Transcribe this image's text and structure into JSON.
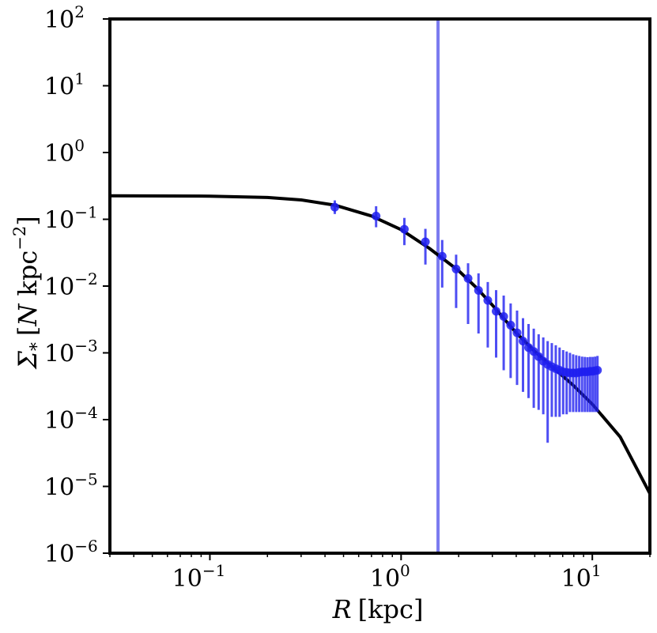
{
  "chart_data": {
    "type": "scatter",
    "xlabel": {
      "symbol": "R",
      "unit": "[kpc]"
    },
    "ylabel": {
      "symbol": "Σ",
      "subscript": "*",
      "unit_open": "[",
      "unit_var": "N",
      "unit_text": " kpc",
      "unit_exp": "−2",
      "unit_close": "]"
    },
    "xscale": "log",
    "yscale": "log",
    "xlim": [
      0.03,
      20
    ],
    "ylim": [
      1e-06,
      100
    ],
    "xticks": [
      {
        "value": 0.1,
        "base": "10",
        "exp": "−1"
      },
      {
        "value": 1,
        "base": "10",
        "exp": "0"
      },
      {
        "value": 10,
        "base": "10",
        "exp": "1"
      }
    ],
    "yticks": [
      {
        "value": 100,
        "base": "10",
        "exp": "2"
      },
      {
        "value": 10,
        "base": "10",
        "exp": "1"
      },
      {
        "value": 1,
        "base": "10",
        "exp": "0"
      },
      {
        "value": 0.1,
        "base": "10",
        "exp": "−1"
      },
      {
        "value": 0.01,
        "base": "10",
        "exp": "−2"
      },
      {
        "value": 0.001,
        "base": "10",
        "exp": "−3"
      },
      {
        "value": 0.0001,
        "base": "10",
        "exp": "−4"
      },
      {
        "value": 1e-05,
        "base": "10",
        "exp": "−5"
      },
      {
        "value": 1e-06,
        "base": "10",
        "exp": "−6"
      }
    ],
    "vertical_line": {
      "x": 1.56,
      "color": "#7b7bf0"
    },
    "model_curve": {
      "color": "#000000",
      "points": [
        [
          0.03,
          0.225
        ],
        [
          0.1,
          0.222
        ],
        [
          0.2,
          0.212
        ],
        [
          0.3,
          0.195
        ],
        [
          0.45,
          0.163
        ],
        [
          0.7,
          0.112
        ],
        [
          1.0,
          0.07
        ],
        [
          1.4,
          0.037
        ],
        [
          2.0,
          0.017
        ],
        [
          2.5,
          0.0092
        ],
        [
          3.0,
          0.0052
        ],
        [
          3.5,
          0.0031
        ],
        [
          4.0,
          0.002
        ],
        [
          5.0,
          0.00105
        ],
        [
          6.0,
          0.00066
        ],
        [
          7.0,
          0.00045
        ],
        [
          8.0,
          0.00032
        ],
        [
          10.0,
          0.00017
        ],
        [
          14.0,
          5.5e-05
        ],
        [
          20.0,
          7.8e-06
        ]
      ]
    },
    "series": [
      {
        "color": "#2020f0",
        "points": [
          {
            "x": 0.45,
            "y": 0.152,
            "lo": 0.12,
            "hi": 0.192
          },
          {
            "x": 0.74,
            "y": 0.112,
            "lo": 0.076,
            "hi": 0.157
          },
          {
            "x": 1.04,
            "y": 0.071,
            "lo": 0.041,
            "hi": 0.105
          },
          {
            "x": 1.34,
            "y": 0.046,
            "lo": 0.021,
            "hi": 0.072
          },
          {
            "x": 1.64,
            "y": 0.028,
            "lo": 0.0095,
            "hi": 0.049
          },
          {
            "x": 1.94,
            "y": 0.018,
            "lo": 0.0047,
            "hi": 0.0295
          },
          {
            "x": 2.24,
            "y": 0.013,
            "lo": 0.0027,
            "hi": 0.022
          },
          {
            "x": 2.54,
            "y": 0.0086,
            "lo": 0.00195,
            "hi": 0.0155
          },
          {
            "x": 2.84,
            "y": 0.0061,
            "lo": 0.0012,
            "hi": 0.0115
          },
          {
            "x": 3.14,
            "y": 0.0042,
            "lo": 0.00085,
            "hi": 0.0087
          },
          {
            "x": 3.44,
            "y": 0.0035,
            "lo": 0.00055,
            "hi": 0.0072
          },
          {
            "x": 3.74,
            "y": 0.0026,
            "lo": 0.00042,
            "hi": 0.0055
          },
          {
            "x": 4.04,
            "y": 0.002,
            "lo": 0.00033,
            "hi": 0.0043
          },
          {
            "x": 4.34,
            "y": 0.0015,
            "lo": 0.00026,
            "hi": 0.0033
          },
          {
            "x": 4.64,
            "y": 0.0012,
            "lo": 0.00021,
            "hi": 0.0027
          },
          {
            "x": 4.94,
            "y": 0.00105,
            "lo": 0.00015,
            "hi": 0.0023
          },
          {
            "x": 5.24,
            "y": 0.00088,
            "lo": 0.00014,
            "hi": 0.0019
          },
          {
            "x": 5.54,
            "y": 0.00075,
            "lo": 0.00012,
            "hi": 0.0017
          },
          {
            "x": 5.84,
            "y": 0.00067,
            "lo": 4.5e-05,
            "hi": 0.0015
          },
          {
            "x": 6.14,
            "y": 0.00062,
            "lo": 0.00011,
            "hi": 0.0014
          },
          {
            "x": 6.44,
            "y": 0.00058,
            "lo": 0.00011,
            "hi": 0.0013
          },
          {
            "x": 6.74,
            "y": 0.00055,
            "lo": 0.00011,
            "hi": 0.0012
          },
          {
            "x": 7.04,
            "y": 0.00052,
            "lo": 0.00012,
            "hi": 0.0011
          },
          {
            "x": 7.34,
            "y": 0.00051,
            "lo": 0.00012,
            "hi": 0.00105
          },
          {
            "x": 7.64,
            "y": 0.0005,
            "lo": 0.00013,
            "hi": 0.001
          },
          {
            "x": 7.94,
            "y": 0.0005,
            "lo": 0.00013,
            "hi": 0.00095
          },
          {
            "x": 8.24,
            "y": 0.0005,
            "lo": 0.00013,
            "hi": 0.00092
          },
          {
            "x": 8.54,
            "y": 0.00051,
            "lo": 0.00013,
            "hi": 0.0009
          },
          {
            "x": 8.84,
            "y": 0.00052,
            "lo": 0.00013,
            "hi": 0.00088
          },
          {
            "x": 9.14,
            "y": 0.00052,
            "lo": 0.00013,
            "hi": 0.00087
          },
          {
            "x": 9.44,
            "y": 0.00052,
            "lo": 0.00013,
            "hi": 0.00086
          },
          {
            "x": 9.74,
            "y": 0.00053,
            "lo": 0.00013,
            "hi": 0.00087
          },
          {
            "x": 10.04,
            "y": 0.00053,
            "lo": 0.00013,
            "hi": 0.00087
          },
          {
            "x": 10.34,
            "y": 0.00054,
            "lo": 0.00013,
            "hi": 0.00088
          },
          {
            "x": 10.64,
            "y": 0.00055,
            "lo": 0.00013,
            "hi": 0.0009
          }
        ]
      }
    ]
  }
}
